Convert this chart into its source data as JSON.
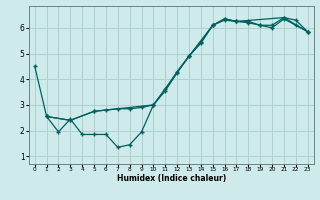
{
  "xlabel": "Humidex (Indice chaleur)",
  "background_color": "#ceeaea",
  "grid_color": "#afd0d0",
  "line_color": "#006060",
  "xlim": [
    -0.5,
    23.5
  ],
  "ylim": [
    0.7,
    6.85
  ],
  "xticks": [
    0,
    1,
    2,
    3,
    4,
    5,
    6,
    7,
    8,
    9,
    10,
    11,
    12,
    13,
    14,
    15,
    16,
    17,
    18,
    19,
    20,
    21,
    22,
    23
  ],
  "yticks": [
    1,
    2,
    3,
    4,
    5,
    6
  ],
  "series1_x": [
    0,
    1,
    2,
    3,
    4,
    5,
    6,
    7,
    8,
    9,
    10,
    11,
    12,
    13,
    14,
    15,
    16,
    17,
    18,
    19,
    20,
    21,
    22,
    23
  ],
  "series1_y": [
    4.5,
    2.55,
    1.95,
    2.45,
    1.85,
    1.85,
    1.85,
    1.35,
    1.45,
    1.95,
    3.0,
    3.55,
    4.25,
    4.9,
    5.45,
    6.1,
    6.3,
    6.25,
    6.25,
    6.1,
    6.1,
    6.4,
    6.3,
    5.85
  ],
  "series2_x": [
    1,
    3,
    5,
    6,
    7,
    8,
    9,
    10,
    11,
    12,
    13,
    14,
    15,
    16,
    17,
    18,
    19,
    20,
    21,
    22,
    23
  ],
  "series2_y": [
    2.55,
    2.4,
    2.75,
    2.8,
    2.85,
    2.85,
    2.9,
    3.0,
    3.6,
    4.3,
    4.9,
    5.4,
    6.1,
    6.35,
    6.25,
    6.2,
    6.1,
    6.0,
    6.35,
    6.1,
    5.85
  ],
  "series3_x": [
    1,
    3,
    5,
    10,
    13,
    15,
    16,
    17,
    21,
    23
  ],
  "series3_y": [
    2.55,
    2.4,
    2.75,
    3.0,
    4.9,
    6.1,
    6.35,
    6.25,
    6.4,
    5.85
  ]
}
